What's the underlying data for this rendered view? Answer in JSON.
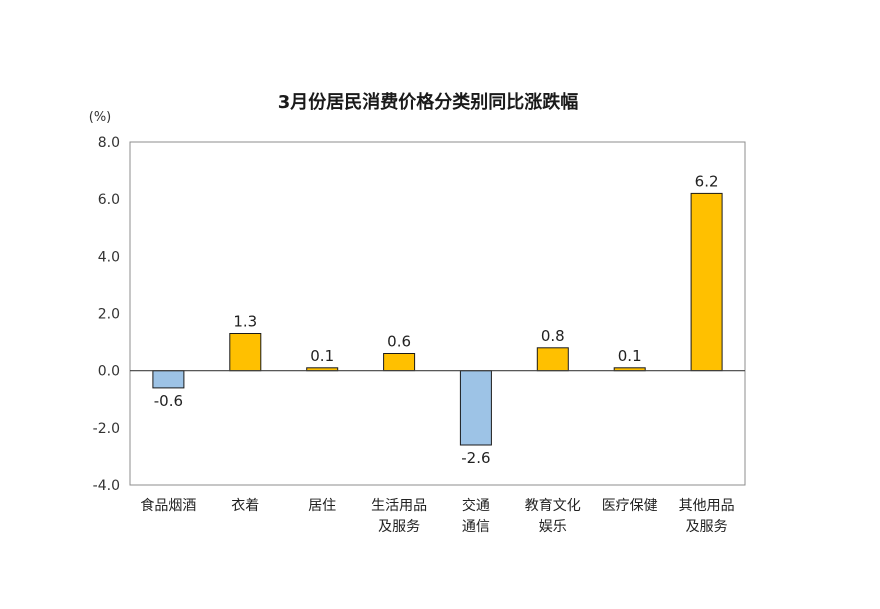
{
  "chart_data": {
    "type": "bar",
    "title": "3月份居民消费价格分类别同比涨跌幅",
    "unit_label": "(%)",
    "ylim": [
      -4.0,
      8.0
    ],
    "yticks": [
      "8.0",
      "6.0",
      "4.0",
      "2.0",
      "0.0",
      "-2.0",
      "-4.0"
    ],
    "ytick_values": [
      8,
      6,
      4,
      2,
      0,
      -2,
      -4
    ],
    "categories": [
      [
        "食品烟酒"
      ],
      [
        "衣着"
      ],
      [
        "居住"
      ],
      [
        "生活用品",
        "及服务"
      ],
      [
        "交通",
        "通信"
      ],
      [
        "教育文化",
        "娱乐"
      ],
      [
        "医疗保健"
      ],
      [
        "其他用品",
        "及服务"
      ]
    ],
    "values": [
      -0.6,
      1.3,
      0.1,
      0.6,
      -2.6,
      0.8,
      0.1,
      6.2
    ],
    "value_labels": [
      "-0.6",
      "1.3",
      "0.1",
      "0.6",
      "-2.6",
      "0.8",
      "0.1",
      "6.2"
    ],
    "colors": {
      "positive": "#FFC000",
      "negative": "#9DC3E6",
      "bar_border": "#1a1a1a",
      "axis": "#404040",
      "frame": "#8c8c8c"
    },
    "grid": false,
    "legend": "none"
  }
}
